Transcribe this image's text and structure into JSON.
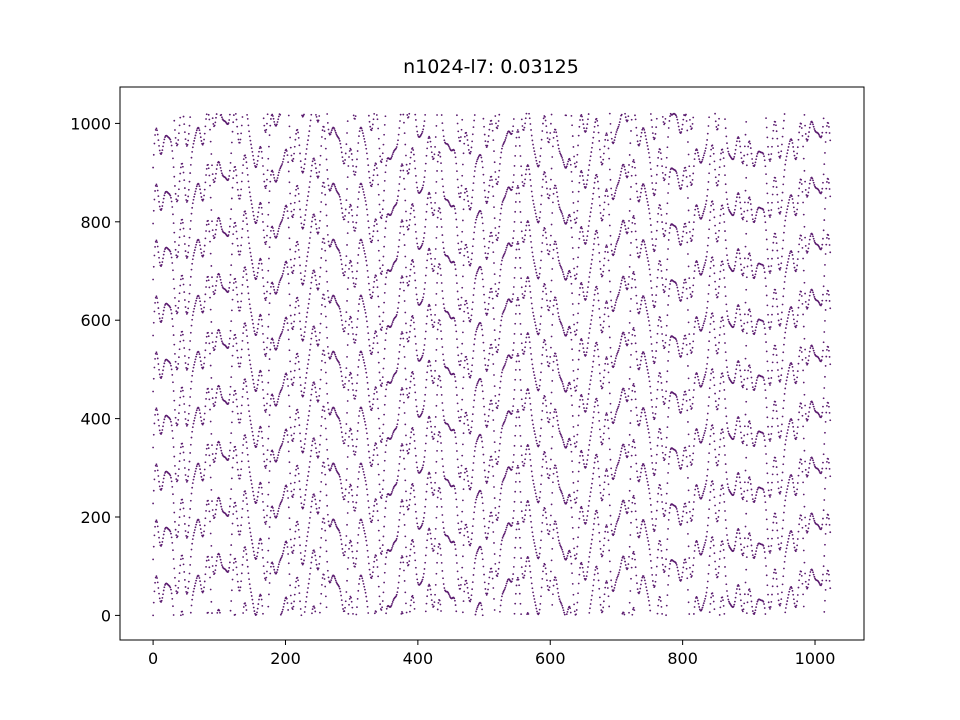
{
  "chart_data": {
    "type": "scatter",
    "title": "n1024-l7: 0.03125",
    "xlabel": "",
    "ylabel": "",
    "xlim": [
      -50,
      1074
    ],
    "ylim": [
      -50,
      1074
    ],
    "x_ticks": [
      0,
      200,
      400,
      600,
      800,
      1000
    ],
    "y_ticks": [
      0,
      200,
      400,
      600,
      800,
      1000
    ],
    "x_tick_labels": [
      "0",
      "200",
      "400",
      "600",
      "800",
      "1000"
    ],
    "y_tick_labels": [
      "0",
      "200",
      "400",
      "600",
      "800",
      "1000"
    ],
    "grid": false,
    "legend": "none",
    "marker_color": "#5a1a6e",
    "series": [
      {
        "generator": "x in 0..1023, step 1; for each x, 9 points with y values spaced 1024/9 apart and offset by a combination of sinusoids in x (dense pseudo-periodic pattern spanning 0–1023 on both axes)",
        "n_columns": 1024,
        "points_per_column": 9,
        "x_range": [
          0,
          1023
        ],
        "y_range": [
          0,
          1023
        ]
      }
    ]
  }
}
